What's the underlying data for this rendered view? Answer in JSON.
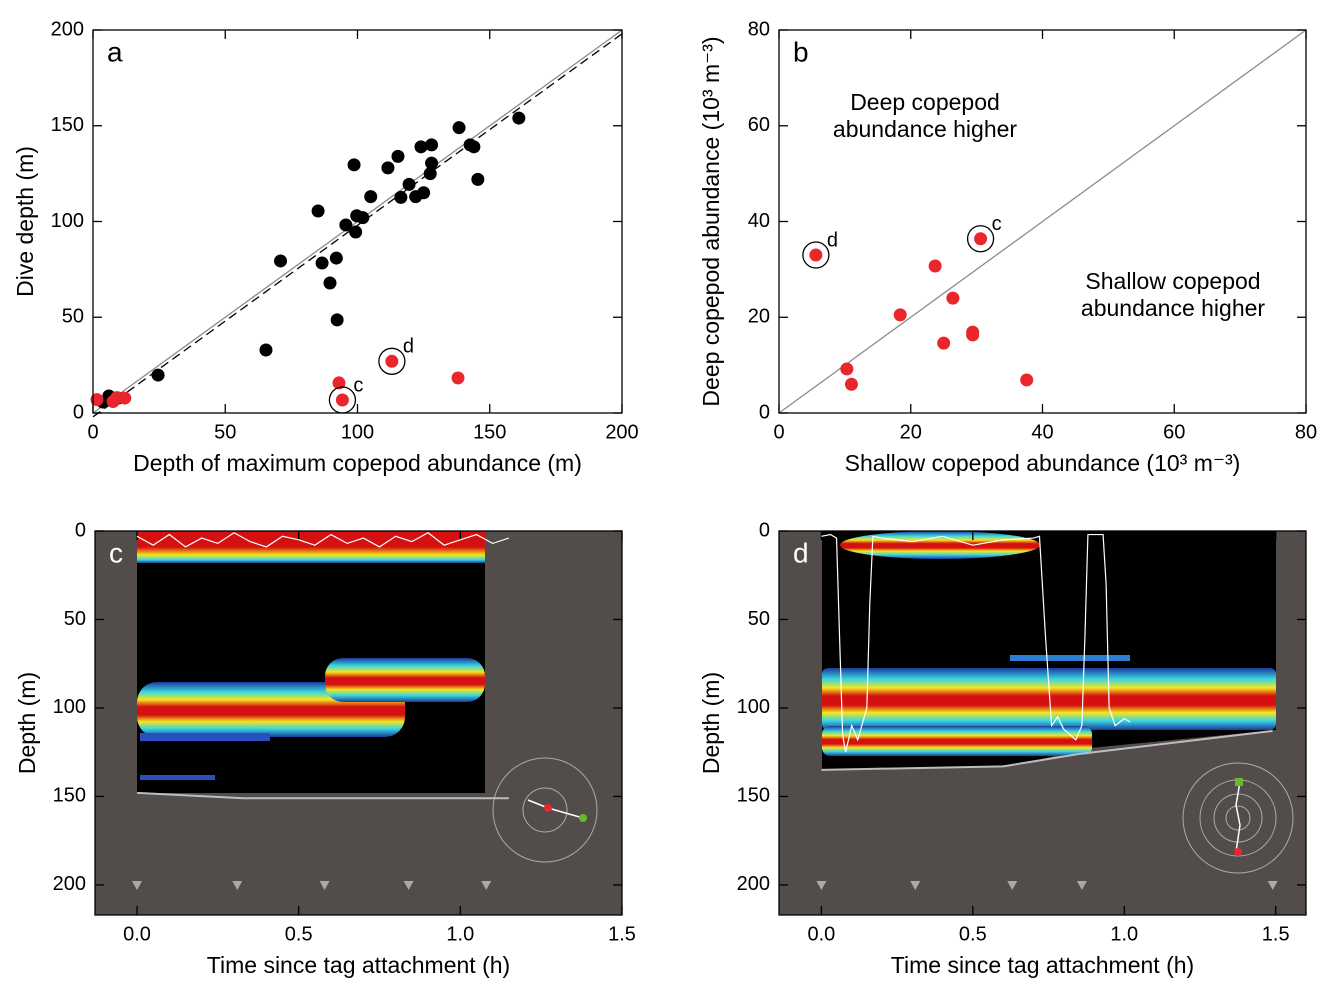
{
  "chart_data": [
    {
      "type": "scatter",
      "panel_label": "a",
      "xlabel": "Depth of maximum copepod abundance (m)",
      "ylabel": "Dive depth (m)",
      "xlim": [
        0,
        200
      ],
      "ylim": [
        0,
        200
      ],
      "xticks": [
        0,
        50,
        100,
        150,
        200
      ],
      "yticks": [
        0,
        50,
        100,
        150,
        200
      ],
      "series": [
        {
          "color": "#000000",
          "x": [
            3.8,
            6.0,
            9.5,
            24.6,
            65.4,
            70.9,
            86.6,
            85.1,
            92,
            89.6,
            92.3,
            95.6,
            98.7,
            99.7,
            99.3,
            102,
            105,
            111.5,
            115.3,
            116.4,
            119.5,
            122,
            124,
            125,
            127.5,
            128,
            128,
            138.4,
            142.6,
            144,
            145.5,
            161
          ],
          "values": [
            5.7,
            8.9,
            7.8,
            19.8,
            32.9,
            79.4,
            78.3,
            105.5,
            80.9,
            67.9,
            48.6,
            98.2,
            129.6,
            103,
            94.5,
            102,
            113,
            128,
            134,
            112.6,
            119.4,
            113,
            139,
            115,
            125,
            130.5,
            140,
            149,
            140,
            139,
            122,
            154
          ]
        },
        {
          "color": "#e8262b",
          "x": [
            1.5,
            7.6,
            9,
            12,
            93,
            94.3,
            113,
            138
          ],
          "values": [
            7,
            6,
            8,
            7.8,
            15.7,
            6.8,
            27,
            18.3
          ]
        }
      ],
      "lines": [
        {
          "style": "solid",
          "color": "#8c8c8c",
          "x": [
            0,
            200
          ],
          "values": [
            0,
            200
          ]
        },
        {
          "style": "dashed",
          "color": "#000000",
          "x": [
            0,
            200
          ],
          "values": [
            -2,
            198
          ]
        }
      ],
      "annotations": [
        {
          "text": "c",
          "series": 1,
          "index": 5
        },
        {
          "text": "d",
          "series": 1,
          "index": 6
        }
      ]
    },
    {
      "type": "scatter",
      "panel_label": "b",
      "xlabel": "Shallow copepod abundance (10³ m⁻³)",
      "ylabel": "Deep copepod abundance (10³ m⁻³)",
      "xlim": [
        0,
        80
      ],
      "ylim": [
        0,
        80
      ],
      "xticks": [
        0,
        20,
        40,
        60,
        80
      ],
      "yticks": [
        0,
        20,
        40,
        60,
        80
      ],
      "series": [
        {
          "color": "#e8262b",
          "x": [
            5.6,
            30.6,
            10.3,
            11,
            18.4,
            23.7,
            25,
            26.4,
            29.4,
            29.4,
            37.6
          ],
          "values": [
            33,
            36.4,
            9.2,
            6,
            20.5,
            30.7,
            14.6,
            24,
            16.9,
            16.3,
            6.9
          ]
        }
      ],
      "lines": [
        {
          "style": "solid",
          "color": "#8c8c8c",
          "x": [
            0,
            80
          ],
          "values": [
            0,
            80
          ]
        }
      ],
      "annotations": [
        {
          "text": "d",
          "series": 0,
          "index": 0
        },
        {
          "text": "c",
          "series": 0,
          "index": 1
        }
      ],
      "notes": [
        [
          "Deep copepod",
          "abundance higher"
        ],
        [
          "Shallow copepod",
          "abundance higher"
        ]
      ]
    },
    {
      "type": "echogram",
      "panel_label": "c",
      "xlabel": "Time since tag attachment (h)",
      "ylabel": "Depth (m)",
      "xlim": [
        -0.13,
        1.5
      ],
      "ylim": [
        0,
        217
      ],
      "invert_y": true,
      "xticks": [
        {
          "value": 0,
          "label": "0.0"
        },
        0.5,
        {
          "value": 1,
          "label": "1.0"
        },
        1.5
      ],
      "yticks": [
        0,
        50,
        100,
        150,
        200
      ],
      "series": [
        {
          "color": "#ffffff",
          "x": [
            0,
            0.05,
            0.1,
            0.15,
            0.2,
            0.25,
            0.3,
            0.35,
            0.4,
            0.45,
            0.5,
            0.55,
            0.6,
            0.65,
            0.7,
            0.75,
            0.8,
            0.85,
            0.9,
            0.95,
            1.0,
            1.05,
            1.1,
            1.15
          ],
          "values": [
            3,
            8,
            2,
            9,
            4,
            7,
            1,
            6,
            9,
            3,
            5,
            8,
            2,
            7,
            4,
            9,
            3,
            6,
            1,
            8,
            5,
            2,
            7,
            4
          ]
        },
        {
          "color": "#bdbdbd",
          "x": [
            0,
            0.33,
            1.15
          ],
          "values": [
            148,
            151,
            151
          ]
        }
      ],
      "markers_x": [
        0,
        0.31,
        0.58,
        0.84,
        1.08
      ]
    },
    {
      "type": "echogram",
      "panel_label": "d",
      "xlabel": "Time since tag attachment (h)",
      "ylabel": "Depth (m)",
      "xlim": [
        -0.14,
        1.6
      ],
      "ylim": [
        0,
        217
      ],
      "invert_y": true,
      "xticks": [
        {
          "value": 0,
          "label": "0.0"
        },
        0.5,
        {
          "value": 1,
          "label": "1.0"
        },
        1.5
      ],
      "yticks": [
        0,
        50,
        100,
        150,
        200
      ],
      "series": [
        {
          "color": "#ffffff",
          "x": [
            0,
            0.03,
            0.05,
            0.06,
            0.07,
            0.08,
            0.1,
            0.12,
            0.15,
            0.16,
            0.17,
            0.2,
            0.3,
            0.4,
            0.5,
            0.6,
            0.7,
            0.72,
            0.74,
            0.76,
            0.78,
            0.8,
            0.82,
            0.84,
            0.86,
            0.87,
            0.88,
            0.9,
            0.93,
            0.94,
            0.95,
            0.97,
            1.0,
            1.02
          ],
          "values": [
            3,
            2,
            4,
            60,
            115,
            125,
            110,
            118,
            100,
            40,
            3,
            4,
            6,
            3,
            8,
            5,
            4,
            3,
            60,
            110,
            105,
            112,
            115,
            118,
            110,
            60,
            2,
            2,
            2,
            30,
            100,
            110,
            106,
            108
          ]
        },
        {
          "color": "#bdbdbd",
          "x": [
            0,
            0.6,
            0.85,
            1.49
          ],
          "values": [
            135,
            133,
            126,
            113
          ]
        }
      ],
      "markers_x": [
        0,
        0.31,
        0.63,
        0.86,
        1.49
      ]
    }
  ]
}
